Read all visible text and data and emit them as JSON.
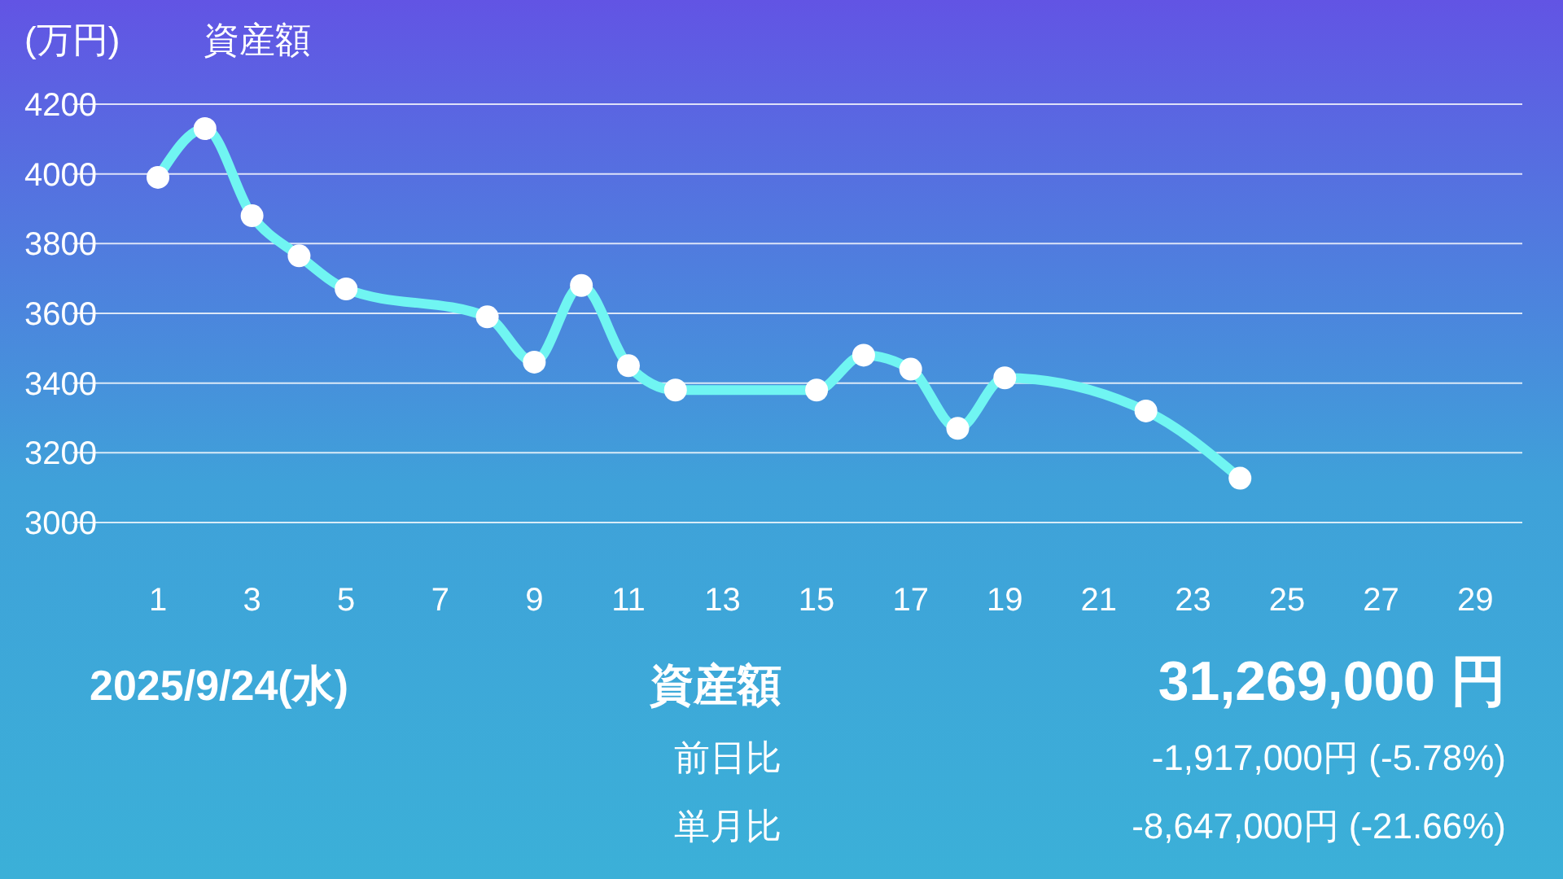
{
  "chart_data": {
    "type": "line",
    "title": "資産額",
    "ylabel": "(万円)",
    "x": [
      1,
      2,
      3,
      4,
      5,
      8,
      9,
      10,
      11,
      12,
      15,
      16,
      17,
      18,
      19,
      22,
      24
    ],
    "series": [
      {
        "color": "#70f5f2",
        "values": [
          3990,
          4130,
          3880,
          3765,
          3670,
          3590,
          3460,
          3680,
          3450,
          3380,
          3380,
          3480,
          3440,
          3270,
          3415,
          3320,
          3127
        ]
      }
    ],
    "xlim": [
      -0.8,
      30
    ],
    "xticks": [
      1,
      3,
      5,
      7,
      9,
      11,
      13,
      15,
      17,
      19,
      21,
      23,
      25,
      27,
      29
    ],
    "ylim": [
      3000,
      4200
    ],
    "yticks": [
      3000,
      3200,
      3400,
      3600,
      3800,
      4000,
      4200
    ],
    "grid": "y",
    "marker": "circle",
    "line_style": "solid",
    "annotations": [
      "2025/9/24(水)",
      "資産額",
      "31,269,000 円",
      "前日比",
      "-1,917,000円 (-5.78%)",
      "単月比",
      "-8,647,000円 (-21.66%)"
    ]
  }
}
